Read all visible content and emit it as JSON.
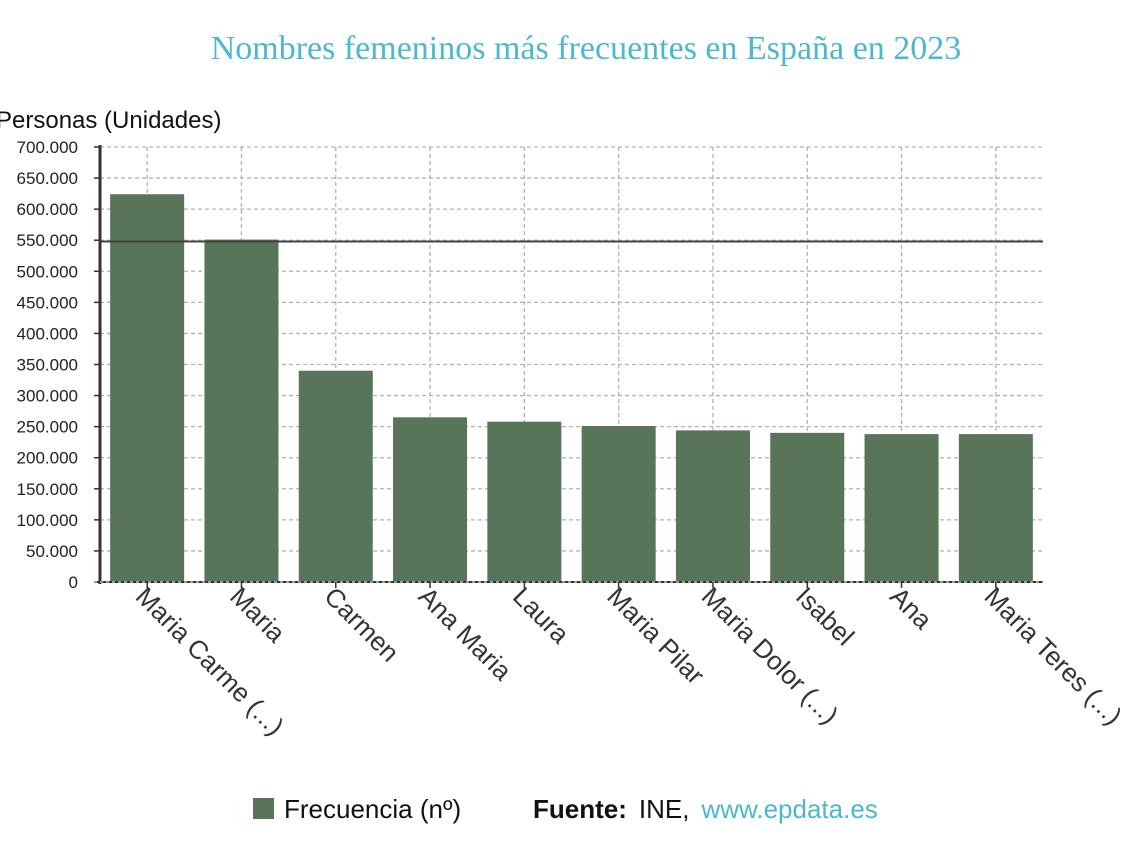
{
  "colors": {
    "bar": "#587459",
    "title": "#4bb8cf",
    "link": "#4bb8cf",
    "grid": "#b3b3b3",
    "reference_line": "#444444"
  },
  "chart_data": {
    "type": "bar",
    "title": "Nombres femeninos más frecuentes en España en 2023",
    "ylabel": "Personas (Unidades)",
    "xlabel": "",
    "ylim": [
      0,
      700000
    ],
    "yticks": [
      0,
      50000,
      100000,
      150000,
      200000,
      250000,
      300000,
      350000,
      400000,
      450000,
      500000,
      550000,
      600000,
      650000,
      700000
    ],
    "ytick_labels": [
      "0",
      "50.000",
      "100.000",
      "150.000",
      "200.000",
      "250.000",
      "300.000",
      "350.000",
      "400.000",
      "450.000",
      "500.000",
      "550.000",
      "600.000",
      "650.000",
      "700.000"
    ],
    "categories": [
      "Maria Carme (...)",
      "Maria",
      "Carmen",
      "Ana Maria",
      "Laura",
      "Maria Pilar",
      "Maria Dolor (...)",
      "Isabel",
      "Ana",
      "Maria Teres (...)"
    ],
    "series": [
      {
        "name": "Frecuencia (nº)",
        "values": [
          624000,
          551000,
          340000,
          265000,
          258000,
          251000,
          244000,
          240000,
          238000,
          238000
        ]
      }
    ],
    "reference_line": 548000,
    "grid": true,
    "legend_position": "bottom"
  },
  "source": {
    "label": "Fuente:",
    "text": "INE,",
    "link": "www.epdata.es"
  }
}
